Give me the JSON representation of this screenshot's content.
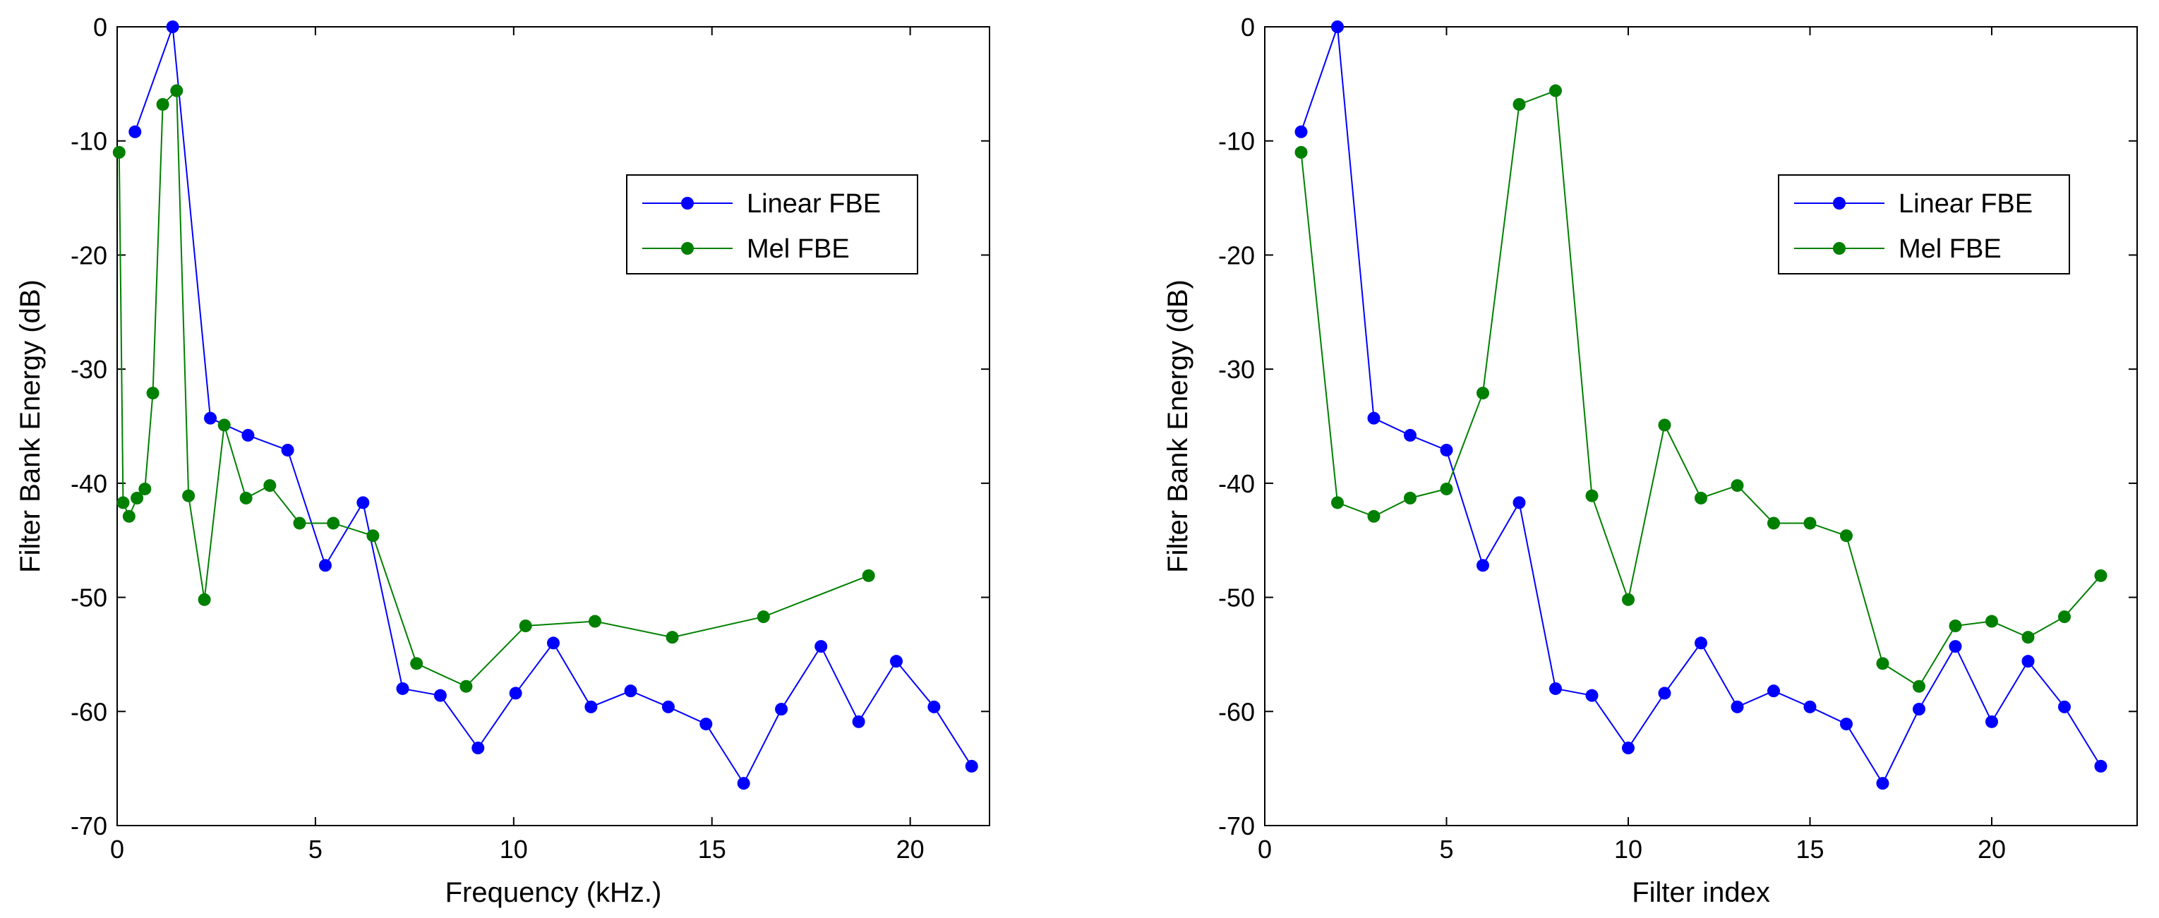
{
  "chart_data": [
    {
      "type": "line",
      "title": "",
      "xlabel": "Frequency (kHz.)",
      "ylabel": "Filter Bank Energy (dB)",
      "xlim": [
        0,
        22
      ],
      "ylim": [
        -70,
        0
      ],
      "xticks": [
        0,
        5,
        10,
        15,
        20
      ],
      "yticks": [
        0,
        -10,
        -20,
        -30,
        -40,
        -50,
        -60,
        -70
      ],
      "grid": false,
      "legend_position": "top-right",
      "series": [
        {
          "name": "Linear FBE",
          "color": "#0000ff",
          "x": [
            0.45,
            1.4,
            2.35,
            3.3,
            4.3,
            5.25,
            6.2,
            7.2,
            8.15,
            9.1,
            10.05,
            11.0,
            11.95,
            12.95,
            13.9,
            14.85,
            15.8,
            16.75,
            17.75,
            18.7,
            19.65,
            20.6,
            21.55
          ],
          "y": [
            -9.2,
            0,
            -34.3,
            -35.8,
            -37.1,
            -47.2,
            -41.7,
            -58.0,
            -58.6,
            -63.2,
            -58.4,
            -54.0,
            -59.6,
            -58.2,
            -59.6,
            -61.1,
            -66.3,
            -59.8,
            -54.3,
            -60.9,
            -55.6,
            -59.6,
            -64.8
          ]
        },
        {
          "name": "Mel FBE",
          "color": "#008000",
          "x": [
            0.05,
            0.15,
            0.3,
            0.5,
            0.7,
            0.9,
            1.15,
            1.5,
            1.8,
            2.2,
            2.7,
            3.25,
            3.85,
            4.6,
            5.45,
            6.45,
            7.55,
            8.8,
            10.3,
            12.05,
            14.0,
            16.3,
            18.95
          ],
          "y": [
            -11.0,
            -41.7,
            -42.9,
            -41.3,
            -40.5,
            -32.1,
            -6.8,
            -5.6,
            -41.1,
            -50.2,
            -34.9,
            -41.3,
            -40.2,
            -43.5,
            -43.5,
            -44.6,
            -55.8,
            -57.8,
            -52.5,
            -52.1,
            -53.5,
            -51.7,
            -48.1
          ]
        }
      ]
    },
    {
      "type": "line",
      "title": "",
      "xlabel": "Filter index",
      "ylabel": "Filter Bank Energy (dB)",
      "xlim": [
        0,
        24
      ],
      "ylim": [
        -70,
        0
      ],
      "xticks": [
        0,
        5,
        10,
        15,
        20
      ],
      "yticks": [
        0,
        -10,
        -20,
        -30,
        -40,
        -50,
        -60,
        -70
      ],
      "grid": false,
      "legend_position": "top-right",
      "series": [
        {
          "name": "Linear FBE",
          "color": "#0000ff",
          "x": [
            1,
            2,
            3,
            4,
            5,
            6,
            7,
            8,
            9,
            10,
            11,
            12,
            13,
            14,
            15,
            16,
            17,
            18,
            19,
            20,
            21,
            22,
            23
          ],
          "y": [
            -9.2,
            0,
            -34.3,
            -35.8,
            -37.1,
            -47.2,
            -41.7,
            -58.0,
            -58.6,
            -63.2,
            -58.4,
            -54.0,
            -59.6,
            -58.2,
            -59.6,
            -61.1,
            -66.3,
            -59.8,
            -54.3,
            -60.9,
            -55.6,
            -59.6,
            -64.8
          ]
        },
        {
          "name": "Mel FBE",
          "color": "#008000",
          "x": [
            1,
            2,
            3,
            4,
            5,
            6,
            7,
            8,
            9,
            10,
            11,
            12,
            13,
            14,
            15,
            16,
            17,
            18,
            19,
            20,
            21,
            22,
            23
          ],
          "y": [
            -11.0,
            -41.7,
            -42.9,
            -41.3,
            -40.5,
            -32.1,
            -6.8,
            -5.6,
            -41.1,
            -50.2,
            -34.9,
            -41.3,
            -40.2,
            -43.5,
            -43.5,
            -44.6,
            -55.8,
            -57.8,
            -52.5,
            -52.1,
            -53.5,
            -51.7,
            -48.1
          ]
        }
      ]
    }
  ]
}
